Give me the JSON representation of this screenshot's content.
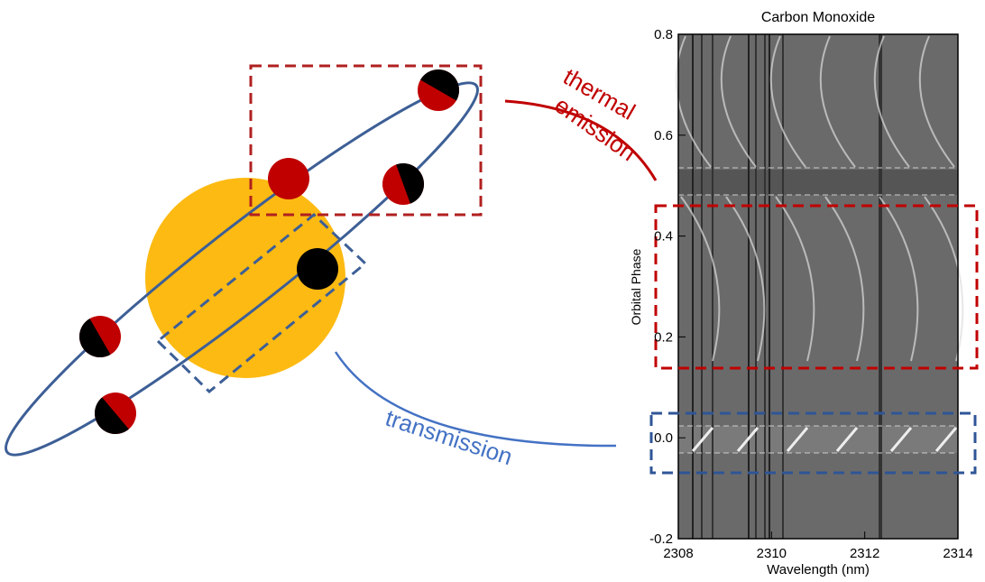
{
  "diagram": {
    "emission_label": [
      "thermal",
      "emission"
    ],
    "transmission_label": "transmission"
  },
  "panel": {
    "title": "Carbon Monoxide",
    "y_label": "Orbital Phase",
    "x_label": "Wavelength (nm)",
    "y_tick_labels": [
      "0.8",
      "0.6",
      "0.4",
      "0.2",
      "0.0",
      "-0.2"
    ],
    "x_tick_labels": [
      "2308",
      "2310",
      "2312",
      "2314"
    ]
  }
}
